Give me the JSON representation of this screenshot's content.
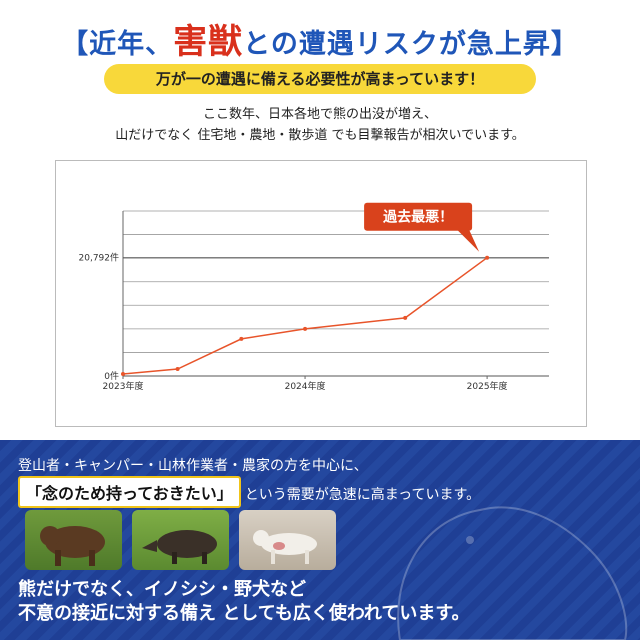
{
  "header": {
    "title_parts": [
      "【近年、",
      "害獣",
      "との遭遇リスクが急上昇】"
    ],
    "banner": "万が一の遭遇に備える必要性が高まっています！"
  },
  "intro": {
    "lines": [
      "ここ数年、日本各地で熊の出没が増え、",
      "山だけでなく 住宅地・農地・散歩道 でも目撃報告が相次いでいます。"
    ]
  },
  "chart_data": {
    "type": "line",
    "color": "#e8542a",
    "annotation": "過去最悪！",
    "x": [
      2023,
      2023.3,
      2023.65,
      2024,
      2024.55,
      2025
    ],
    "values": [
      350,
      1230,
      6520,
      8280,
      10220,
      20792
    ],
    "xlim": [
      2023,
      2025.34
    ],
    "xticks": [
      {
        "value": 2023,
        "label": "2023年度"
      },
      {
        "value": 2024,
        "label": "2024年度"
      },
      {
        "value": 2025,
        "label": "2025年度"
      }
    ],
    "ylim": [
      0,
      29000
    ],
    "yticks": [
      {
        "value": 0,
        "label": "0件"
      },
      {
        "value": 20792,
        "label": "20,792件"
      }
    ],
    "grid": true
  },
  "footer": {
    "lead": "登山者・キャンパー・山林作業者・農家の方を中心に、",
    "highlight": "「念のため持っておきたい」",
    "highlight_suffix": "という需要が急速に高まっています。",
    "closing_lines": [
      "熊だけでなく、イノシシ・野犬など",
      "不意の接近に対する備え としても広く使われています。"
    ]
  }
}
